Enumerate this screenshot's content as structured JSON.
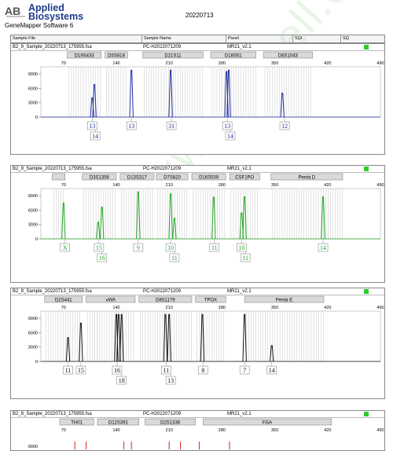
{
  "header": {
    "company_line1": "Applied",
    "company_line2": "Biosystems",
    "software": "GeneMapper Software 6",
    "run_date": "20220713"
  },
  "columns": [
    "Sample File",
    "Sample Name",
    "Panel",
    "SQI",
    "SQ"
  ],
  "colors": {
    "blue": "#1f2fa0",
    "green": "#22a622",
    "black": "#111111",
    "red": "#dd1a1a",
    "status": "#2ecc2e",
    "marker_fill": "#d9d9d9"
  },
  "panels": [
    {
      "file": "B2_9_Sample_20220713_175955.fsa",
      "name": "PC-H2022071209",
      "panel": "MR21_v2.1",
      "color": "blue",
      "x_ticks": [
        70,
        140,
        210,
        280,
        350,
        420,
        490
      ],
      "y_ticks": [
        0,
        3000,
        6000,
        9000
      ],
      "markers": [
        {
          "label": "D19S433",
          "from": 75,
          "to": 120
        },
        {
          "label": "D5S818",
          "from": 125,
          "to": 155
        },
        {
          "label": "D21S11",
          "from": 175,
          "to": 255
        },
        {
          "label": "D18S51",
          "from": 265,
          "to": 325
        },
        {
          "label": "D6S1043",
          "from": 335,
          "to": 400
        }
      ],
      "peaks": [
        {
          "x": 108,
          "h": 4000
        },
        {
          "x": 111,
          "h": 6800
        },
        {
          "x": 160,
          "h": 9800
        },
        {
          "x": 212,
          "h": 9800
        },
        {
          "x": 286,
          "h": 9500
        },
        {
          "x": 289,
          "h": 9800
        },
        {
          "x": 360,
          "h": 5000
        }
      ],
      "allele_row1": [
        {
          "x": 108,
          "t": "13"
        },
        {
          "x": 160,
          "t": "13"
        },
        {
          "x": 213,
          "t": "31"
        },
        {
          "x": 287,
          "t": "13"
        },
        {
          "x": 363,
          "t": "12"
        }
      ],
      "allele_row2": [
        {
          "x": 112,
          "t": "14"
        },
        {
          "x": 291,
          "t": "14"
        }
      ]
    },
    {
      "file": "B2_9_Sample_20220713_175955.fsa",
      "name": "PC-H2022071209",
      "panel": "MR21_v2.1",
      "color": "green",
      "x_ticks": [
        70,
        140,
        210,
        280,
        350,
        420,
        490
      ],
      "y_ticks": [
        0,
        3000,
        6000,
        9000
      ],
      "markers": [
        {
          "label": "",
          "from": 55,
          "to": 72
        },
        {
          "label": "D3S1358",
          "from": 95,
          "to": 140
        },
        {
          "label": "D13S317",
          "from": 145,
          "to": 190
        },
        {
          "label": "D7S820",
          "from": 193,
          "to": 235
        },
        {
          "label": "D16S539",
          "from": 240,
          "to": 285
        },
        {
          "label": "CSF1PO",
          "from": 290,
          "to": 330
        },
        {
          "label": "Penta D",
          "from": 345,
          "to": 440
        }
      ],
      "peaks": [
        {
          "x": 70,
          "h": 7500
        },
        {
          "x": 116,
          "h": 3500
        },
        {
          "x": 121,
          "h": 6600
        },
        {
          "x": 169,
          "h": 9800
        },
        {
          "x": 212,
          "h": 9400
        },
        {
          "x": 217,
          "h": 4300
        },
        {
          "x": 269,
          "h": 8700
        },
        {
          "x": 306,
          "h": 5400
        },
        {
          "x": 310,
          "h": 8800
        },
        {
          "x": 414,
          "h": 8800
        }
      ],
      "allele_row1": [
        {
          "x": 72,
          "t": "X"
        },
        {
          "x": 117,
          "t": "15"
        },
        {
          "x": 169,
          "t": "9"
        },
        {
          "x": 212,
          "t": "10"
        },
        {
          "x": 270,
          "t": "11"
        },
        {
          "x": 306,
          "t": "10"
        },
        {
          "x": 414,
          "t": "14"
        }
      ],
      "allele_row2": [
        {
          "x": 121,
          "t": "16"
        },
        {
          "x": 217,
          "t": "11"
        },
        {
          "x": 311,
          "t": "11"
        }
      ]
    },
    {
      "file": "B2_9_Sample_20220713_175955.fsa",
      "name": "PC-H2022071209",
      "panel": "MR21_v2.1",
      "color": "black",
      "x_ticks": [
        70,
        140,
        210,
        280,
        350,
        420,
        490
      ],
      "y_ticks": [
        0,
        3000,
        6000,
        9000
      ],
      "markers": [
        {
          "label": "D2S441",
          "from": 45,
          "to": 95
        },
        {
          "label": "vWA",
          "from": 100,
          "to": 165
        },
        {
          "label": "D8S1179",
          "from": 170,
          "to": 240
        },
        {
          "label": "TPOX",
          "from": 245,
          "to": 285
        },
        {
          "label": "Penta E",
          "from": 310,
          "to": 415
        }
      ],
      "peaks": [
        {
          "x": 76,
          "h": 5000
        },
        {
          "x": 93,
          "h": 8000
        },
        {
          "x": 140,
          "h": 9800
        },
        {
          "x": 143,
          "h": 9800
        },
        {
          "x": 147,
          "h": 9800
        },
        {
          "x": 205,
          "h": 9800
        },
        {
          "x": 210,
          "h": 9800
        },
        {
          "x": 254,
          "h": 9800
        },
        {
          "x": 310,
          "h": 9800
        },
        {
          "x": 346,
          "h": 3300
        }
      ],
      "allele_row1": [
        {
          "x": 76,
          "t": "11"
        },
        {
          "x": 93,
          "t": "15"
        },
        {
          "x": 141,
          "t": "16"
        },
        {
          "x": 206,
          "t": "11"
        },
        {
          "x": 255,
          "t": "8"
        },
        {
          "x": 310,
          "t": "7"
        },
        {
          "x": 346,
          "t": "14"
        }
      ],
      "allele_row2": [
        {
          "x": 147,
          "t": "18"
        },
        {
          "x": 212,
          "t": "13"
        }
      ]
    },
    {
      "file": "B2_9_Sample_20220713_175955.fsa",
      "name": "PC-H2022071209",
      "panel": "MR21_v2.1",
      "color": "red",
      "x_ticks": [
        70,
        140,
        210,
        280,
        350,
        420,
        490
      ],
      "y_ticks": [
        9000
      ],
      "markers": [
        {
          "label": "TH01",
          "from": 65,
          "to": 110
        },
        {
          "label": "D12S391",
          "from": 115,
          "to": 170
        },
        {
          "label": "D2S1338",
          "from": 178,
          "to": 245
        },
        {
          "label": "FGA",
          "from": 255,
          "to": 425
        }
      ],
      "peaks": [],
      "allele_row1": [],
      "allele_row2": []
    }
  ],
  "watermark": "www.pricell.com.cn"
}
